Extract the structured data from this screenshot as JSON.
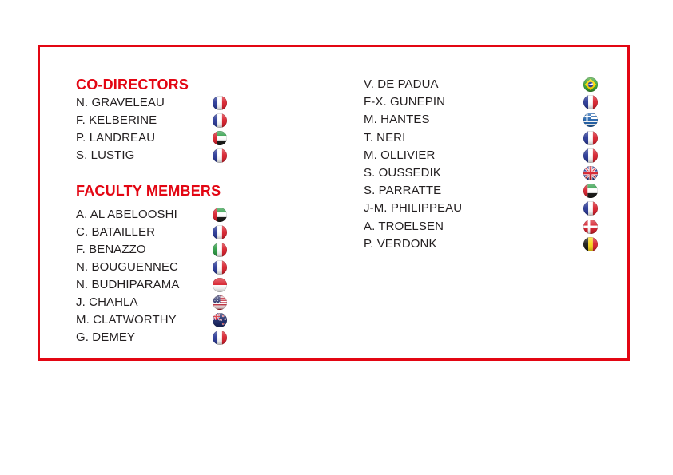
{
  "page": {
    "background": "#ffffff",
    "accent_red": "#e30613",
    "text_color": "#231f20"
  },
  "columns": {
    "left": {
      "sections": [
        {
          "title": "CO-DIRECTORS",
          "members": [
            {
              "name": "N. GRAVELEAU",
              "country": "France",
              "flag_icon": "france-flag-icon"
            },
            {
              "name": "F. KELBERINE",
              "country": "France",
              "flag_icon": "france-flag-icon"
            },
            {
              "name": "P. LANDREAU",
              "country": "United Arab Emirates",
              "flag_icon": "uae-flag-icon"
            },
            {
              "name": "S. LUSTIG",
              "country": "France",
              "flag_icon": "france-flag-icon"
            }
          ]
        },
        {
          "title": "FACULTY MEMBERS",
          "members": [
            {
              "name": "A. AL ABELOOSHI",
              "country": "United Arab Emirates",
              "flag_icon": "uae-flag-icon"
            },
            {
              "name": "C. BATAILLER",
              "country": "France",
              "flag_icon": "france-flag-icon"
            },
            {
              "name": "F. BENAZZO",
              "country": "Italy",
              "flag_icon": "italy-flag-icon"
            },
            {
              "name": "N. BOUGUENNEC",
              "country": "France",
              "flag_icon": "france-flag-icon"
            },
            {
              "name": "N. BUDHIPARAMA",
              "country": "Indonesia",
              "flag_icon": "indonesia-flag-icon"
            },
            {
              "name": "J. CHAHLA",
              "country": "United States",
              "flag_icon": "usa-flag-icon"
            },
            {
              "name": "M. CLATWORTHY",
              "country": "New Zealand",
              "flag_icon": "new-zealand-flag-icon"
            },
            {
              "name": "G. DEMEY",
              "country": "France",
              "flag_icon": "france-flag-icon"
            }
          ]
        }
      ]
    },
    "right": {
      "members": [
        {
          "name": "V. DE PADUA",
          "country": "Brazil",
          "flag_icon": "brazil-flag-icon"
        },
        {
          "name": "F-X. GUNEPIN",
          "country": "France",
          "flag_icon": "france-flag-icon"
        },
        {
          "name": "M. HANTES",
          "country": "Greece",
          "flag_icon": "greece-flag-icon"
        },
        {
          "name": "T. NERI",
          "country": "France",
          "flag_icon": "france-flag-icon"
        },
        {
          "name": "M. OLLIVIER",
          "country": "France",
          "flag_icon": "france-flag-icon"
        },
        {
          "name": "S. OUSSEDIK",
          "country": "United Kingdom",
          "flag_icon": "uk-flag-icon"
        },
        {
          "name": "S. PARRATTE",
          "country": "United Arab Emirates",
          "flag_icon": "uae-flag-icon"
        },
        {
          "name": "J-M. PHILIPPEAU",
          "country": "France",
          "flag_icon": "france-flag-icon"
        },
        {
          "name": "A. TROELSEN",
          "country": "Denmark",
          "flag_icon": "denmark-flag-icon"
        },
        {
          "name": "P. VERDONK",
          "country": "Belgium",
          "flag_icon": "belgium-flag-icon"
        }
      ]
    }
  }
}
